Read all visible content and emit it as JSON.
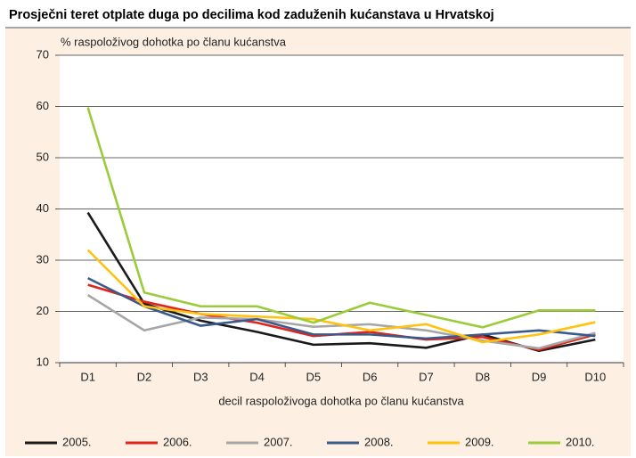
{
  "chart_data": {
    "type": "line",
    "title": "Prosječni teret otplate duga po decilima kod zaduženih kućanstava u Hrvatskoj",
    "y_label": "% raspoloživog dohotka po članu kućanstva",
    "x_label": "decil raspoloživoga dohotka po članu kućanstva",
    "categories": [
      "D1",
      "D2",
      "D3",
      "D4",
      "D5",
      "D6",
      "D7",
      "D8",
      "D9",
      "D10"
    ],
    "series": [
      {
        "name": "2005.",
        "color": "#1a1a1a",
        "values": [
          39.3,
          21.5,
          18.2,
          16.0,
          13.5,
          13.8,
          12.9,
          15.5,
          12.3,
          14.5
        ]
      },
      {
        "name": "2006.",
        "color": "#e2231a",
        "values": [
          25.2,
          21.9,
          19.5,
          17.8,
          15.2,
          16.0,
          14.5,
          15.0,
          12.5,
          15.5
        ]
      },
      {
        "name": "2007.",
        "color": "#a6a6a6",
        "values": [
          23.2,
          16.3,
          18.8,
          18.5,
          17.0,
          17.5,
          16.3,
          14.3,
          12.8,
          15.8
        ]
      },
      {
        "name": "2008.",
        "color": "#3b5a8c",
        "values": [
          26.5,
          21.0,
          17.2,
          18.5,
          15.5,
          15.5,
          14.7,
          15.5,
          16.3,
          15.2
        ]
      },
      {
        "name": "2009.",
        "color": "#ffc20e",
        "values": [
          32.0,
          21.0,
          19.5,
          19.0,
          18.5,
          16.3,
          17.5,
          14.0,
          15.5,
          17.9
        ]
      },
      {
        "name": "2010.",
        "color": "#9bcb3b",
        "values": [
          59.8,
          23.7,
          21.0,
          21.0,
          17.8,
          21.7,
          19.3,
          16.9,
          20.2,
          20.2
        ]
      }
    ],
    "ylim": [
      10,
      70
    ],
    "yticks": [
      10,
      20,
      30,
      40,
      50,
      60,
      70
    ],
    "grid": true,
    "legend": "bottom"
  }
}
